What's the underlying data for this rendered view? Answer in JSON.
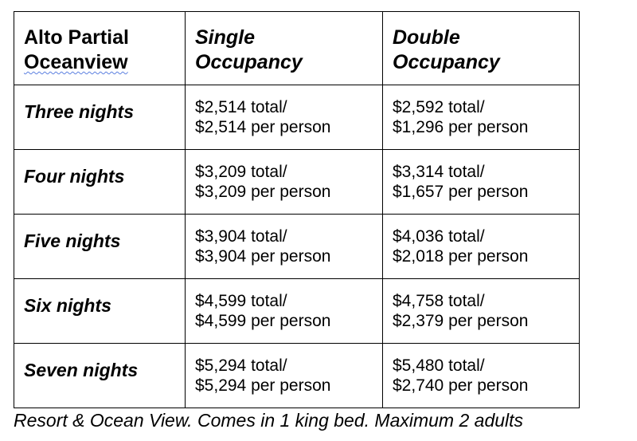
{
  "table": {
    "header": {
      "room_title_line1": "Alto Partial",
      "room_title_line2": "Oceanview",
      "single_line1": "Single",
      "single_line2": "Occupancy",
      "double_line1": "Double",
      "double_line2": "Occupancy"
    },
    "rows": [
      {
        "nights": "Three nights",
        "single_total": "$2,514 total/",
        "single_per_person": "$2,514 per person",
        "double_total": "$2,592 total/",
        "double_per_person": "$1,296 per person"
      },
      {
        "nights": "Four nights",
        "single_total": "$3,209 total/",
        "single_per_person": "$3,209 per person",
        "double_total": "$3,314 total/",
        "double_per_person": "$1,657 per person"
      },
      {
        "nights": "Five nights",
        "single_total": "$3,904 total/",
        "single_per_person": "$3,904 per person",
        "double_total": "$4,036 total/",
        "double_per_person": "$2,018 per person"
      },
      {
        "nights": "Six nights",
        "single_total": "$4,599 total/",
        "single_per_person": "$4,599 per person",
        "double_total": "$4,758 total/",
        "double_per_person": "$2,379 per person"
      },
      {
        "nights": "Seven nights",
        "single_total": "$5,294 total/",
        "single_per_person": "$5,294 per person",
        "double_total": "$5,480 total/",
        "double_per_person": "$2,740 per person"
      }
    ]
  },
  "footnote": "Resort & Ocean View. Comes in 1 king bed. Maximum 2 adults",
  "colors": {
    "text": "#000000",
    "border": "#000000",
    "background": "#ffffff",
    "spellcheck_underline": "#5b7fe0"
  }
}
